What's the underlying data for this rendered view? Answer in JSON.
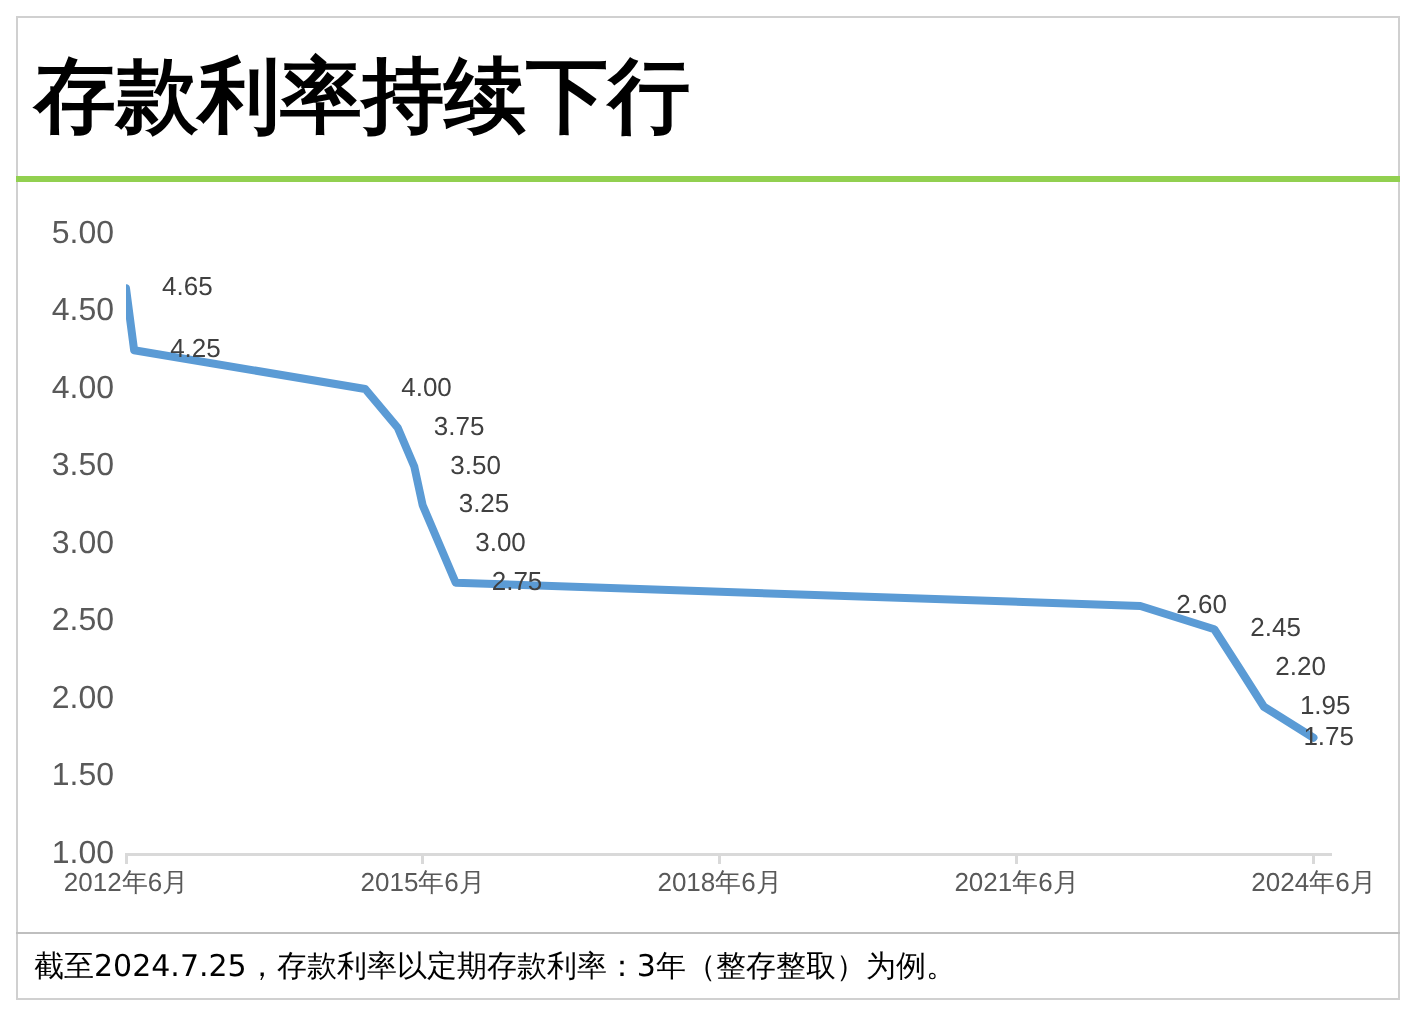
{
  "chart_data": {
    "type": "line",
    "title": "存款利率持续下行",
    "annotations": [
      "截至2024.7.25，存款利率以定期存款利率：3年（整存整取）为例。"
    ],
    "x": [
      "2012-06",
      "2012-07",
      "2014-11",
      "2015-03",
      "2015-05",
      "2015-06",
      "2015-08",
      "2015-10",
      "2022-09",
      "2023-06",
      "2023-09",
      "2023-12",
      "2024-06"
    ],
    "series": [
      {
        "color": "#5b9bd5",
        "values": [
          4.65,
          4.25,
          4.0,
          3.75,
          3.5,
          3.25,
          3.0,
          2.75,
          2.6,
          2.45,
          2.2,
          1.95,
          1.75
        ],
        "value_labels": [
          "4.65",
          "4.25",
          "4.00",
          "3.75",
          "3.50",
          "3.25",
          "3.00",
          "2.75",
          "2.60",
          "2.45",
          "2.20",
          "1.95",
          "1.75"
        ]
      }
    ],
    "xlim": [
      "2012-06",
      "2024-08"
    ],
    "xticks": [
      {
        "value": "2012-06",
        "label": "2012年6月"
      },
      {
        "value": "2015-06",
        "label": "2015年6月"
      },
      {
        "value": "2018-06",
        "label": "2018年6月"
      },
      {
        "value": "2021-06",
        "label": "2021年6月"
      },
      {
        "value": "2024-06",
        "label": "2024年6月"
      }
    ],
    "ylim": [
      1,
      5
    ],
    "yticks": [
      {
        "value": 1,
        "label": "1.00"
      },
      {
        "value": 1.5,
        "label": "1.50"
      },
      {
        "value": 2,
        "label": "2.00"
      },
      {
        "value": 2.5,
        "label": "2.50"
      },
      {
        "value": 3,
        "label": "3.00"
      },
      {
        "value": 3.5,
        "label": "3.50"
      },
      {
        "value": 4,
        "label": "4.00"
      },
      {
        "value": 4.5,
        "label": "4.50"
      },
      {
        "value": 5,
        "label": "5.00"
      }
    ],
    "grid": false,
    "legend": false,
    "marker": "none",
    "line_style": "solid"
  }
}
